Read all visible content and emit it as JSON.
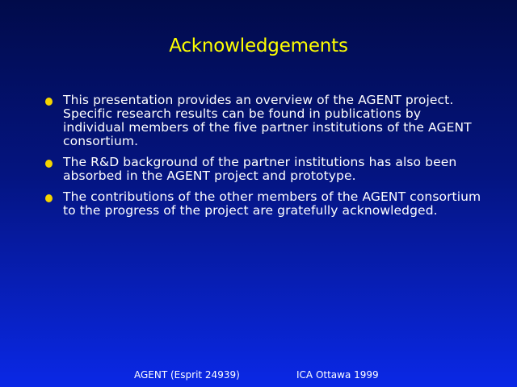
{
  "slide": {
    "title": "Acknowledgements",
    "bullets": [
      {
        "text": "This presentation provides an overview of the AGENT project. Specific research results can be found in publications by individual members of the five partner institutions of the AGENT consortium."
      },
      {
        "text": "The R&D background of the partner institutions has also been absorbed in the AGENT project and prototype."
      },
      {
        "text": "The contributions of the other members of the AGENT consortium to the progress of the project are gratefully acknowledged."
      }
    ],
    "footer": {
      "left": "AGENT (Esprit 24939)",
      "right": "ICA Ottawa 1999"
    },
    "colors": {
      "title": "#ffff00",
      "bullet": "#f4d400",
      "text": "#ffffff",
      "background_top": "#010b4a",
      "background_bottom": "#0a28e6"
    }
  }
}
